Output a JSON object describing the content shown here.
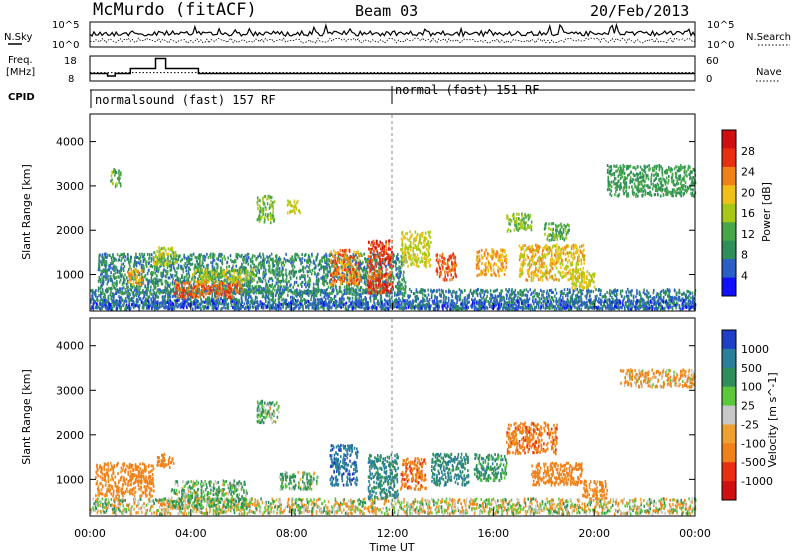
{
  "header": {
    "station": "McMurdo (fitACF)",
    "beam": "Beam 03",
    "date": "20/Feb/2013"
  },
  "summary": {
    "nsky_label": "N.Sky",
    "nsearch_label": "N.Search",
    "freq_label_line1": "Freq.",
    "freq_label_line2": "[MHz]",
    "nave_label": "Nave",
    "cpid_label": "CPID",
    "noise_left_ticks": [
      "10^5",
      "10^0"
    ],
    "noise_right_ticks": [
      "10^5",
      "10^0"
    ],
    "freq_ticks": [
      "18",
      "8"
    ],
    "nave_ticks": [
      "60",
      "0"
    ],
    "cpid_segments": [
      {
        "label": "normalsound (fast) 157 RF",
        "start_h": 0,
        "end_h": 12
      },
      {
        "label": "normal (fast) 151 RF",
        "start_h": 12,
        "end_h": 24
      }
    ],
    "freq_steps_mhz": [
      {
        "start_h": 0.0,
        "end_h": 0.7,
        "value": 11
      },
      {
        "start_h": 0.7,
        "end_h": 1.0,
        "value": 10
      },
      {
        "start_h": 1.0,
        "end_h": 1.6,
        "value": 11
      },
      {
        "start_h": 1.6,
        "end_h": 2.6,
        "value": 13
      },
      {
        "start_h": 2.6,
        "end_h": 3.0,
        "value": 17
      },
      {
        "start_h": 3.0,
        "end_h": 4.3,
        "value": 13
      },
      {
        "start_h": 4.3,
        "end_h": 12.0,
        "value": 11
      },
      {
        "start_h": 12.0,
        "end_h": 24.0,
        "value": 11
      }
    ],
    "nave_level": 20
  },
  "chart_data": [
    {
      "type": "heatmap",
      "name": "power",
      "ylabel": "Slant Range [km]",
      "yticks": [
        "1000",
        "2000",
        "3000",
        "4000"
      ],
      "ylim": [
        200,
        4600
      ],
      "xlim": [
        0,
        24
      ],
      "colorbar_label": "Power [dB]",
      "colorbar_ticks": [
        "4",
        "8",
        "12",
        "16",
        "20",
        "24",
        "28"
      ],
      "colorbar_range": [
        0,
        32
      ],
      "colorbar_colors": [
        "#1010ff",
        "#2a5fc8",
        "#2f8f5a",
        "#48a848",
        "#a8c818",
        "#f0c018",
        "#f08018",
        "#e83010",
        "#d01010"
      ],
      "regions": [
        {
          "t0": 0.0,
          "t1": 24.0,
          "r0": 250,
          "r1": 700,
          "v": 8
        },
        {
          "t0": 0.3,
          "t1": 12.5,
          "r0": 600,
          "r1": 1500,
          "v": 10
        },
        {
          "t0": 0.8,
          "t1": 1.2,
          "r0": 3000,
          "r1": 3400,
          "v": 14
        },
        {
          "t0": 1.5,
          "t1": 2.1,
          "r0": 800,
          "r1": 1150,
          "v": 24
        },
        {
          "t0": 2.5,
          "t1": 3.4,
          "r0": 1250,
          "r1": 1650,
          "v": 18
        },
        {
          "t0": 3.3,
          "t1": 6.0,
          "r0": 500,
          "r1": 900,
          "v": 28
        },
        {
          "t0": 4.0,
          "t1": 6.5,
          "r0": 850,
          "r1": 1150,
          "v": 18
        },
        {
          "t0": 6.6,
          "t1": 7.3,
          "r0": 2200,
          "r1": 2800,
          "v": 16
        },
        {
          "t0": 7.8,
          "t1": 8.3,
          "r0": 2400,
          "r1": 2700,
          "v": 20
        },
        {
          "t0": 9.5,
          "t1": 10.7,
          "r0": 800,
          "r1": 1600,
          "v": 26
        },
        {
          "t0": 11.0,
          "t1": 12.0,
          "r0": 600,
          "r1": 1800,
          "v": 30
        },
        {
          "t0": 12.3,
          "t1": 13.5,
          "r0": 1200,
          "r1": 2000,
          "v": 20
        },
        {
          "t0": 13.7,
          "t1": 14.5,
          "r0": 900,
          "r1": 1500,
          "v": 28
        },
        {
          "t0": 15.3,
          "t1": 16.5,
          "r0": 1000,
          "r1": 1600,
          "v": 24
        },
        {
          "t0": 16.5,
          "t1": 17.5,
          "r0": 2000,
          "r1": 2400,
          "v": 16
        },
        {
          "t0": 17.0,
          "t1": 19.6,
          "r0": 900,
          "r1": 1700,
          "v": 22
        },
        {
          "t0": 18.0,
          "t1": 19.0,
          "r0": 1800,
          "r1": 2200,
          "v": 14
        },
        {
          "t0": 19.0,
          "t1": 20.0,
          "r0": 700,
          "r1": 1100,
          "v": 20
        },
        {
          "t0": 20.5,
          "t1": 24.0,
          "r0": 2800,
          "r1": 3500,
          "v": 12
        },
        {
          "t0": 0.0,
          "t1": 24.0,
          "r0": 250,
          "r1": 450,
          "v": 6
        }
      ]
    },
    {
      "type": "heatmap",
      "name": "velocity",
      "ylabel": "Slant Range [km]",
      "yticks": [
        "1000",
        "2000",
        "3000",
        "4000"
      ],
      "ylim": [
        200,
        4600
      ],
      "xlim": [
        0,
        24
      ],
      "xlabel": "Time UT",
      "xticks": [
        "00:00",
        "04:00",
        "08:00",
        "12:00",
        "16:00",
        "20:00",
        "00:00"
      ],
      "colorbar_label": "Velocity [m s^-1]",
      "colorbar_ticks": [
        "1000",
        "500",
        "100",
        "25",
        "-25",
        "-100",
        "-500",
        "-1000"
      ],
      "colorbar_colors": [
        "#1f3fc8",
        "#2a7f9a",
        "#2f8f5a",
        "#5ac83a",
        "#c8c8c8",
        "#f0a030",
        "#f08018",
        "#e83010",
        "#d01010"
      ],
      "regions": [
        {
          "t0": 0.0,
          "t1": 24.0,
          "r0": 250,
          "r1": 600,
          "v": 0
        },
        {
          "t0": 0.2,
          "t1": 2.5,
          "r0": 650,
          "r1": 1400,
          "v": -200
        },
        {
          "t0": 2.6,
          "t1": 3.3,
          "r0": 1300,
          "r1": 1600,
          "v": -300
        },
        {
          "t0": 3.2,
          "t1": 6.2,
          "r0": 400,
          "r1": 1000,
          "v": 100
        },
        {
          "t0": 6.6,
          "t1": 7.5,
          "r0": 2300,
          "r1": 2800,
          "v": 100
        },
        {
          "t0": 7.5,
          "t1": 9.0,
          "r0": 800,
          "r1": 1200,
          "v": 100
        },
        {
          "t0": 9.5,
          "t1": 10.6,
          "r0": 900,
          "r1": 1800,
          "v": 600
        },
        {
          "t0": 11.0,
          "t1": 12.2,
          "r0": 600,
          "r1": 1600,
          "v": 300
        },
        {
          "t0": 12.3,
          "t1": 13.3,
          "r0": 800,
          "r1": 1500,
          "v": -400
        },
        {
          "t0": 13.5,
          "t1": 15.0,
          "r0": 900,
          "r1": 1600,
          "v": 300
        },
        {
          "t0": 15.2,
          "t1": 16.5,
          "r0": 1000,
          "r1": 1600,
          "v": 200
        },
        {
          "t0": 16.5,
          "t1": 18.5,
          "r0": 1600,
          "r1": 2300,
          "v": -400
        },
        {
          "t0": 17.5,
          "t1": 19.5,
          "r0": 900,
          "r1": 1400,
          "v": -300
        },
        {
          "t0": 19.5,
          "t1": 20.5,
          "r0": 600,
          "r1": 1000,
          "v": -200
        },
        {
          "t0": 21.0,
          "t1": 24.0,
          "r0": 3100,
          "r1": 3500,
          "v": -100
        }
      ]
    }
  ]
}
